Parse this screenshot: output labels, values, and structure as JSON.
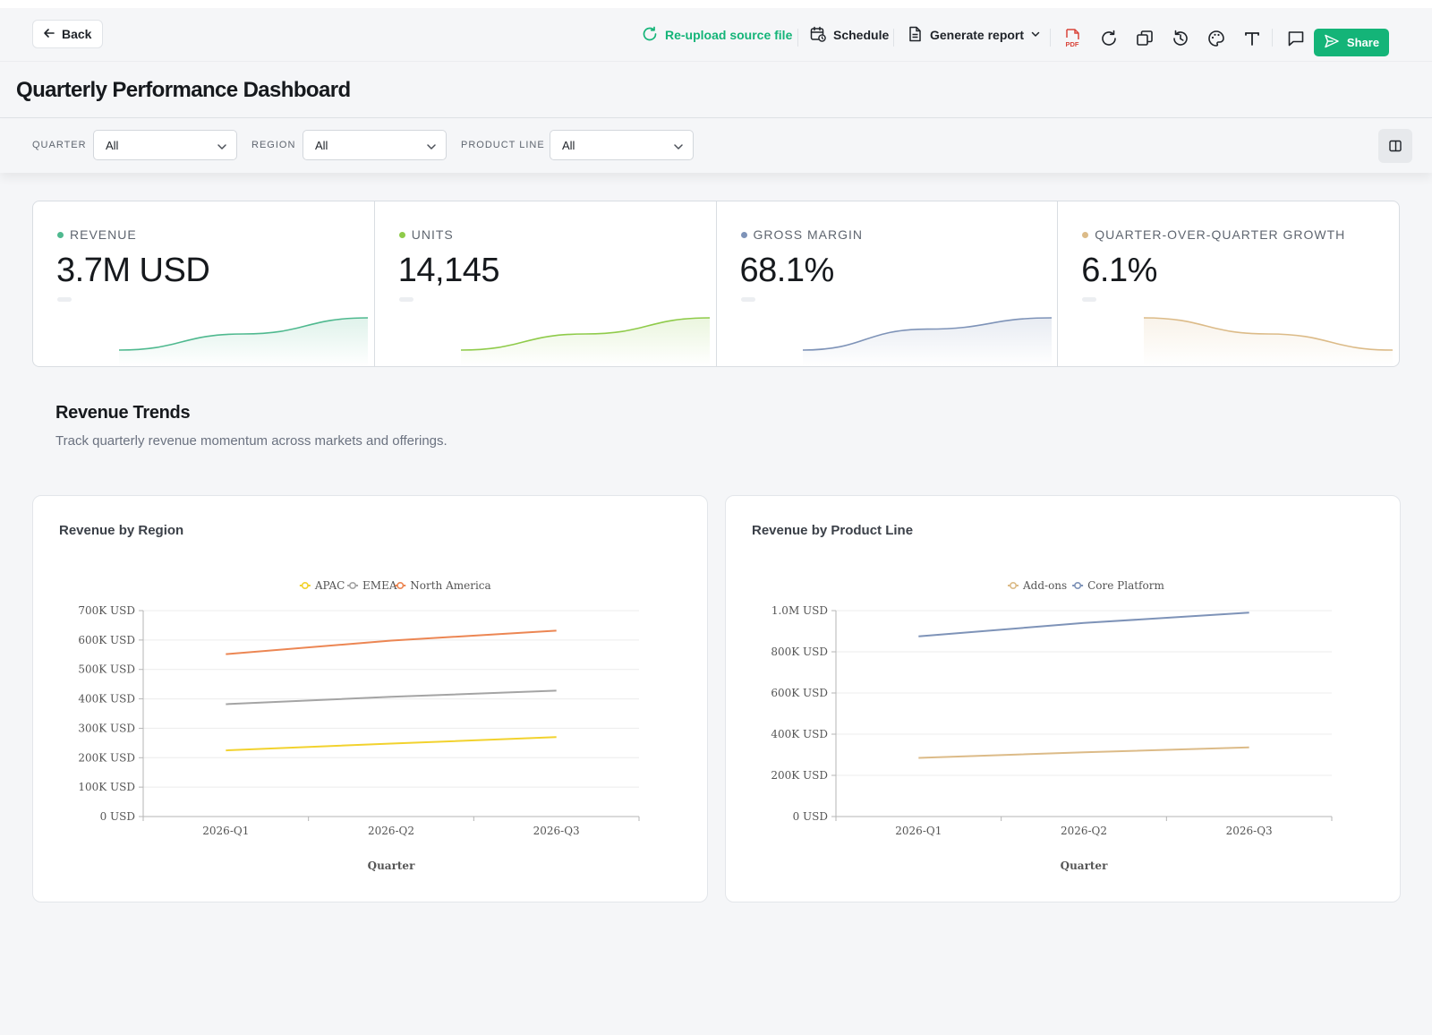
{
  "toolbar": {
    "back_label": "Back",
    "reupload_label": "Re-upload source file",
    "schedule_label": "Schedule",
    "generate_report_label": "Generate report",
    "share_label": "Share",
    "accent_color": "#14b478"
  },
  "page": {
    "title": "Quarterly Performance Dashboard"
  },
  "filters": [
    {
      "label": "QUARTER",
      "value": "All"
    },
    {
      "label": "REGION",
      "value": "All"
    },
    {
      "label": "PRODUCT LINE",
      "value": "All"
    }
  ],
  "kpis": [
    {
      "label": "REVENUE",
      "value": "3.7M USD",
      "color": "#4fb98f",
      "trend": [
        0,
        0.5,
        1
      ]
    },
    {
      "label": "UNITS",
      "value": "14,145",
      "color": "#8fcb4a",
      "trend": [
        0,
        0.5,
        1
      ]
    },
    {
      "label": "GROSS MARGIN",
      "value": "68.1%",
      "color": "#7e93b8",
      "trend": [
        0,
        0.65,
        1
      ]
    },
    {
      "label": "QUARTER-OVER-QUARTER GROWTH",
      "value": "6.1%",
      "color": "#dcbb88",
      "trend": [
        1,
        0.5,
        0
      ]
    }
  ],
  "section": {
    "title": "Revenue Trends",
    "subtitle": "Track quarterly revenue momentum across markets and offerings."
  },
  "chart_data": [
    {
      "type": "line",
      "title": "Revenue by Region",
      "xlabel": "Quarter",
      "ylabel": "",
      "categories": [
        "2026-Q1",
        "2026-Q2",
        "2026-Q3"
      ],
      "ylim": [
        0,
        700000
      ],
      "yticks": [
        0,
        100000,
        200000,
        300000,
        400000,
        500000,
        600000,
        700000
      ],
      "ytick_labels": [
        "0 USD",
        "100K USD",
        "200K USD",
        "300K USD",
        "400K USD",
        "500K USD",
        "600K USD",
        "700K USD"
      ],
      "legend_position": "top-center",
      "grid": true,
      "series": [
        {
          "name": "APAC",
          "color": "#f2d22e",
          "values": [
            225000,
            248000,
            270000
          ]
        },
        {
          "name": "EMEA",
          "color": "#a4a4a4",
          "values": [
            382000,
            407000,
            428000
          ]
        },
        {
          "name": "North America",
          "color": "#ec8653",
          "values": [
            552000,
            598000,
            632000
          ]
        }
      ]
    },
    {
      "type": "line",
      "title": "Revenue by Product Line",
      "xlabel": "Quarter",
      "ylabel": "",
      "categories": [
        "2026-Q1",
        "2026-Q2",
        "2026-Q3"
      ],
      "ylim": [
        0,
        1000000
      ],
      "yticks": [
        0,
        200000,
        400000,
        600000,
        800000,
        1000000
      ],
      "ytick_labels": [
        "0 USD",
        "200K USD",
        "400K USD",
        "600K USD",
        "800K USD",
        "1.0M USD"
      ],
      "legend_position": "top-center",
      "grid": true,
      "series": [
        {
          "name": "Add-ons",
          "color": "#dcbb88",
          "values": [
            285000,
            312000,
            336000
          ]
        },
        {
          "name": "Core Platform",
          "color": "#7e93b8",
          "values": [
            875000,
            940000,
            990000
          ]
        }
      ]
    }
  ]
}
